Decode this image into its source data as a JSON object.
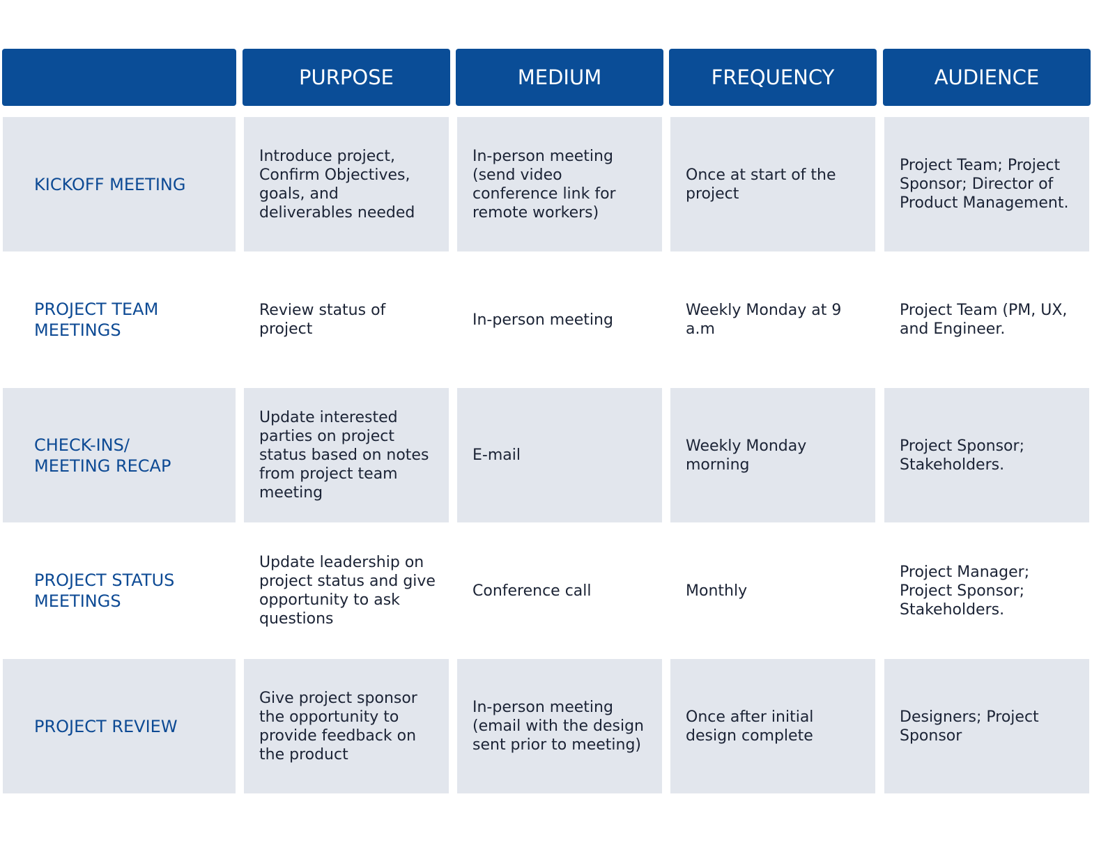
{
  "table": {
    "headers": [
      "PURPOSE",
      "MEDIUM",
      "FREQUENCY",
      "AUDIENCE"
    ],
    "rows": [
      {
        "label": "KICKOFF MEETING",
        "cells": [
          "Introduce project, Confirm Objectives, goals, and deliverables needed",
          "In-person meeting (send video conference link for remote workers)",
          "Once at start of the project",
          "Project Team; Project Sponsor; Director of Product Management."
        ]
      },
      {
        "label": "PROJECT TEAM MEETINGS",
        "cells": [
          "Review status of project",
          "In-person meeting",
          "Weekly Monday at 9 a.m",
          "Project Team (PM, UX, and Engineer."
        ]
      },
      {
        "label": "CHECK-INS/ MEETING RECAP",
        "cells": [
          "Update interested parties on project status based on notes from project team meeting",
          "E-mail",
          "Weekly Monday morning",
          "Project Sponsor; Stakeholders."
        ]
      },
      {
        "label": "PROJECT STATUS MEETINGS",
        "cells": [
          "Update leadership on project status and give opportunity to ask questions",
          "Conference call",
          "Monthly",
          "Project Manager; Project Sponsor; Stakeholders."
        ]
      },
      {
        "label": "PROJECT REVIEW",
        "cells": [
          "Give project sponsor the opportunity to provide feedback on the product",
          "In-person meeting (email with the design sent prior to meeting)",
          "Once after initial design complete",
          "Designers; Project Sponsor"
        ]
      }
    ]
  }
}
